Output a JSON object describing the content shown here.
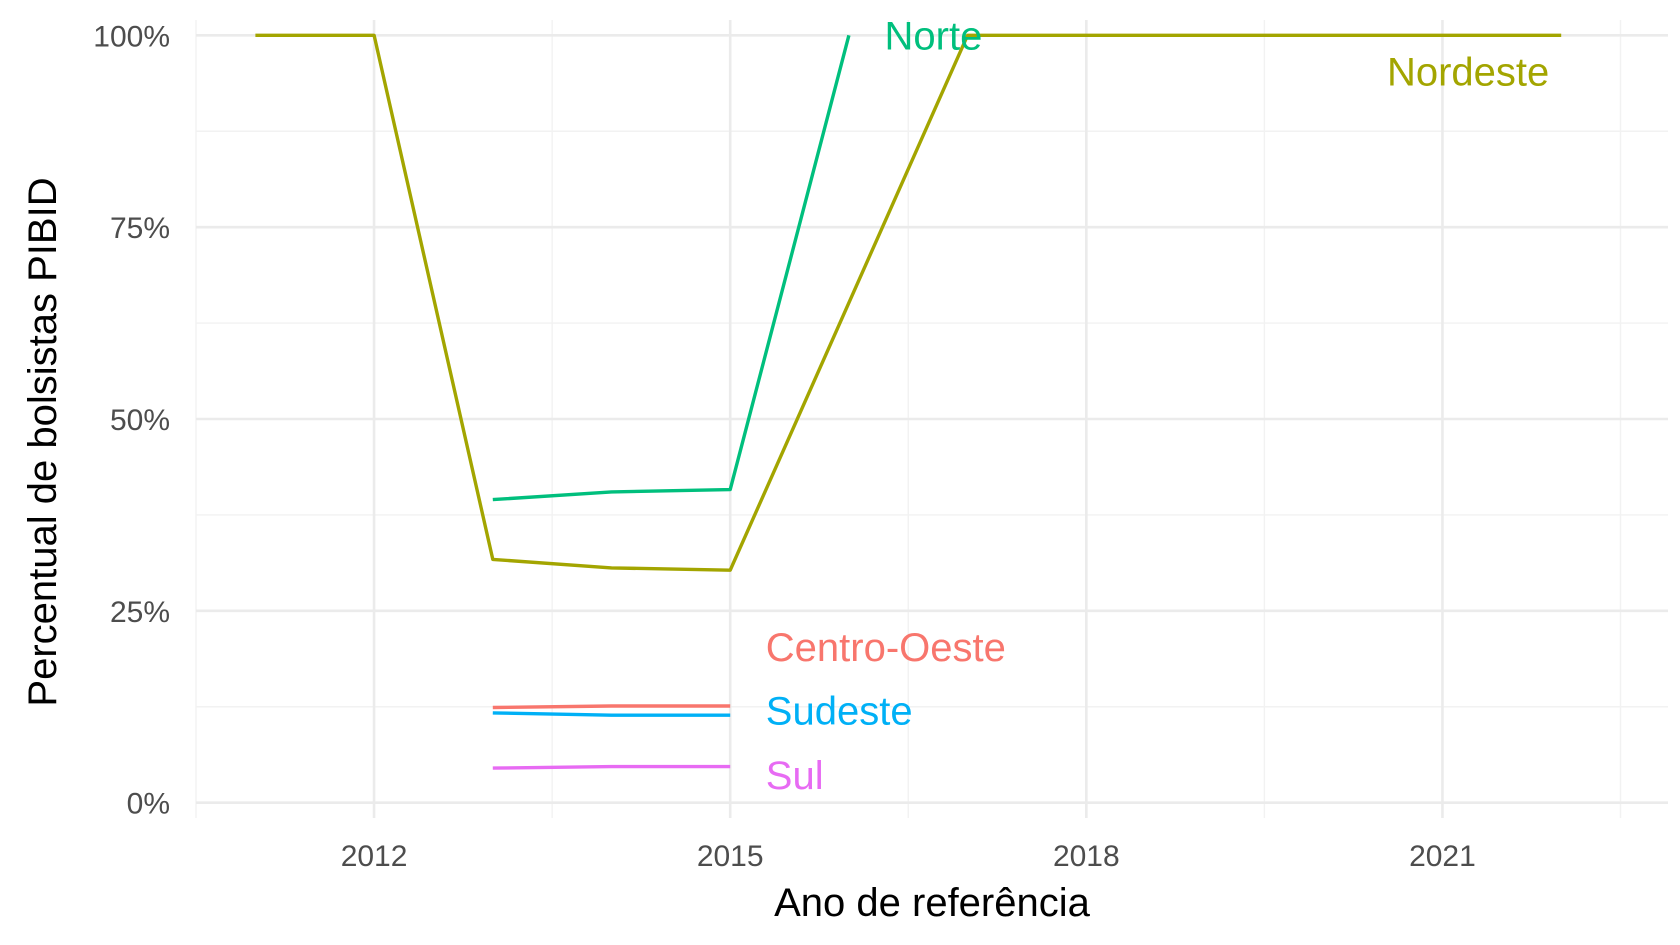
{
  "chart_data": {
    "type": "line",
    "xlabel": "Ano de referência",
    "ylabel": "Percentual de bolsistas PIBID",
    "xlim": [
      2010.5,
      2022.9
    ],
    "ylim": [
      -0.02,
      1.02
    ],
    "x_ticks": [
      2012,
      2015,
      2018,
      2021
    ],
    "x_tick_labels": [
      "2012",
      "2015",
      "2018",
      "2021"
    ],
    "x_minor_ticks": [
      2010.5,
      2013.5,
      2016.5,
      2019.5,
      2022.5
    ],
    "y_ticks": [
      0,
      0.25,
      0.5,
      0.75,
      1.0
    ],
    "y_tick_labels": [
      "0%",
      "25%",
      "50%",
      "75%",
      "100%"
    ],
    "y_minor_ticks": [
      0.125,
      0.375,
      0.625,
      0.875
    ],
    "grid": true,
    "legend": "direct labels at line ends",
    "series": [
      {
        "name": "Norte",
        "color": "#00BF7D",
        "x": [
          2013,
          2014,
          2015,
          2016
        ],
        "y": [
          0.395,
          0.405,
          0.408,
          1.0
        ],
        "label_at": [
          2016.3,
          1.0
        ]
      },
      {
        "name": "Nordeste",
        "color": "#A3A500",
        "x": [
          2011,
          2012,
          2013,
          2014,
          2015,
          2017,
          2018,
          2019,
          2020,
          2021,
          2022
        ],
        "y": [
          1.0,
          1.0,
          0.317,
          0.306,
          0.303,
          1.0,
          1.0,
          1.0,
          1.0,
          1.0,
          1.0
        ],
        "label_at": [
          2021.9,
          0.953
        ]
      },
      {
        "name": "Centro-Oeste",
        "color": "#F8766D",
        "x": [
          2013,
          2014,
          2015
        ],
        "y": [
          0.124,
          0.126,
          0.126
        ],
        "label_at": [
          2015.3,
          0.203
        ]
      },
      {
        "name": "Sudeste",
        "color": "#00B0F6",
        "x": [
          2013,
          2014,
          2015
        ],
        "y": [
          0.117,
          0.114,
          0.114
        ],
        "label_at": [
          2015.3,
          0.12
        ]
      },
      {
        "name": "Sul",
        "color": "#E76BF3",
        "x": [
          2013,
          2014,
          2015
        ],
        "y": [
          0.045,
          0.047,
          0.047
        ],
        "label_at": [
          2015.3,
          0.036
        ]
      }
    ]
  }
}
